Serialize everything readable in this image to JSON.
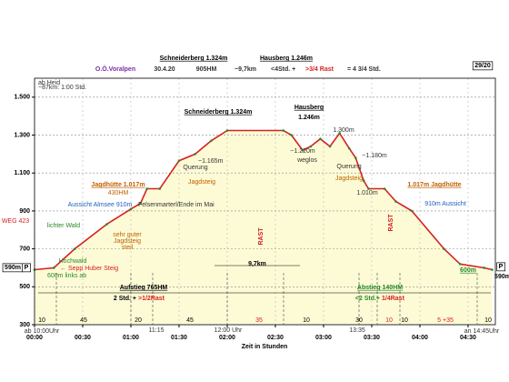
{
  "chart_data": {
    "type": "area",
    "x_label": "Zeit in Stunden",
    "x": [
      0,
      12,
      25,
      45,
      60,
      66,
      70,
      78,
      90,
      100,
      110,
      120,
      155,
      160,
      167,
      172,
      178,
      184,
      190,
      196,
      200,
      205,
      208,
      218,
      225,
      235,
      255,
      265,
      280,
      285
    ],
    "values": [
      590,
      600,
      700,
      830,
      910,
      940,
      1017,
      1017,
      1165,
      1200,
      1270,
      1324,
      1324,
      1300,
      1220,
      1240,
      1280,
      1240,
      1310,
      1230,
      1180,
      1060,
      1017,
      1017,
      950,
      900,
      700,
      620,
      600,
      590
    ],
    "line_color": "#d62020",
    "fill_color": "#fdfbd6",
    "xlim": [
      0,
      287
    ],
    "ylim": [
      300,
      1600
    ],
    "xticks": [
      {
        "value": 0,
        "label": "00:00"
      },
      {
        "value": 30,
        "label": "00:30"
      },
      {
        "value": 60,
        "label": "01:00"
      },
      {
        "value": 90,
        "label": "01:30"
      },
      {
        "value": 120,
        "label": "02:00"
      },
      {
        "value": 150,
        "label": "02:30"
      },
      {
        "value": 180,
        "label": "03:00"
      },
      {
        "value": 210,
        "label": "03:30"
      },
      {
        "value": 240,
        "label": "04:00"
      },
      {
        "value": 270,
        "label": "04:30"
      }
    ],
    "yticks": [
      300,
      500,
      700,
      900,
      {
        "value": 1100,
        "label": "1.100"
      },
      {
        "value": 1300,
        "label": "1.300"
      },
      {
        "value": 1500,
        "label": "1.500"
      }
    ],
    "grid": true,
    "annotations": [
      "Schneiderberg 1.324m",
      "Hausberg 1.246m",
      "O.Ö.Voralpen",
      "30.4.20",
      "905HM",
      "~9,7km",
      "<4Std. +",
      ">3/4 Rast",
      "= 4 3/4 Std.",
      "29/20",
      "ab Heid",
      "~87km: 1:00 Std.",
      "Schneiderberg 1.324m",
      "Hausberg",
      "1.246m",
      "~1.165m",
      "Querung",
      "Jagdsteig",
      "Jagdhütte 1.017m",
      "430HM",
      "Felsenmarterl/Ende im Mai",
      "Aussicht Almsee 910m",
      "lichter Wald",
      "sehr guter",
      "Jagdsteig",
      "steil",
      "Hochwald",
      "← Sepp Huber Steig",
      "600m links ab",
      "~1.220m",
      "weglos",
      "1.300m",
      "Querung",
      "~1.180m",
      "Jagdsteig",
      "1.010m",
      "1.017m Jagdhütte",
      "910m Aussicht",
      "600m",
      "RAST",
      "RAST",
      "9,7km",
      "WEG 423",
      "590m",
      "P",
      "590m",
      "P",
      "Aufstieg 765HM",
      "2 Std. +",
      ">1/2Rast",
      "Abstieg 140HM",
      "<2 Std.+",
      "1/4Rast",
      "11:15",
      "12:00 Uhr",
      "13:35",
      "ab 10:00Uhr",
      "an 14:45Uhr",
      "10",
      "45",
      "20",
      "45",
      "35",
      "10",
      "30",
      "10",
      "10",
      "5 +35",
      "10"
    ]
  }
}
